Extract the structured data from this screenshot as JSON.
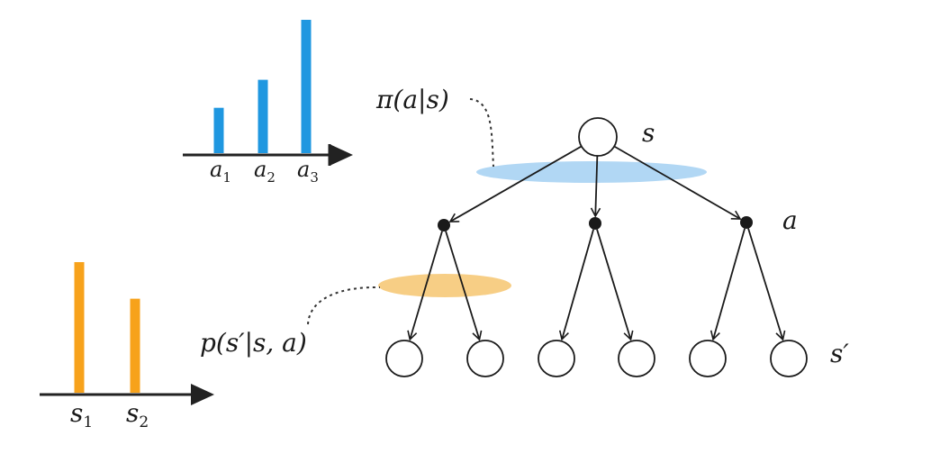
{
  "colors": {
    "policy_bar": "#1f97e0",
    "transition_bar": "#f7a21b",
    "policy_ellipse": "#a9d3f3",
    "transition_ellipse": "#f6c978",
    "ink": "#1a1a1a"
  },
  "policy_chart": {
    "bars": [
      {
        "label": "a",
        "sub": "1",
        "value": 0.34
      },
      {
        "label": "a",
        "sub": "2",
        "value": 0.55
      },
      {
        "label": "a",
        "sub": "3",
        "value": 1.0
      }
    ]
  },
  "transition_chart": {
    "bars": [
      {
        "label": "s",
        "sub": "1",
        "value": 1.0
      },
      {
        "label": "s",
        "sub": "2",
        "value": 0.72
      }
    ]
  },
  "labels": {
    "policy": "π(a|s)",
    "transition": "p(s′|s, a)",
    "state": "s",
    "action": "a",
    "next_state": "s′"
  },
  "tree": {
    "root": "s",
    "actions": 3,
    "next_states_per_action": 2
  }
}
